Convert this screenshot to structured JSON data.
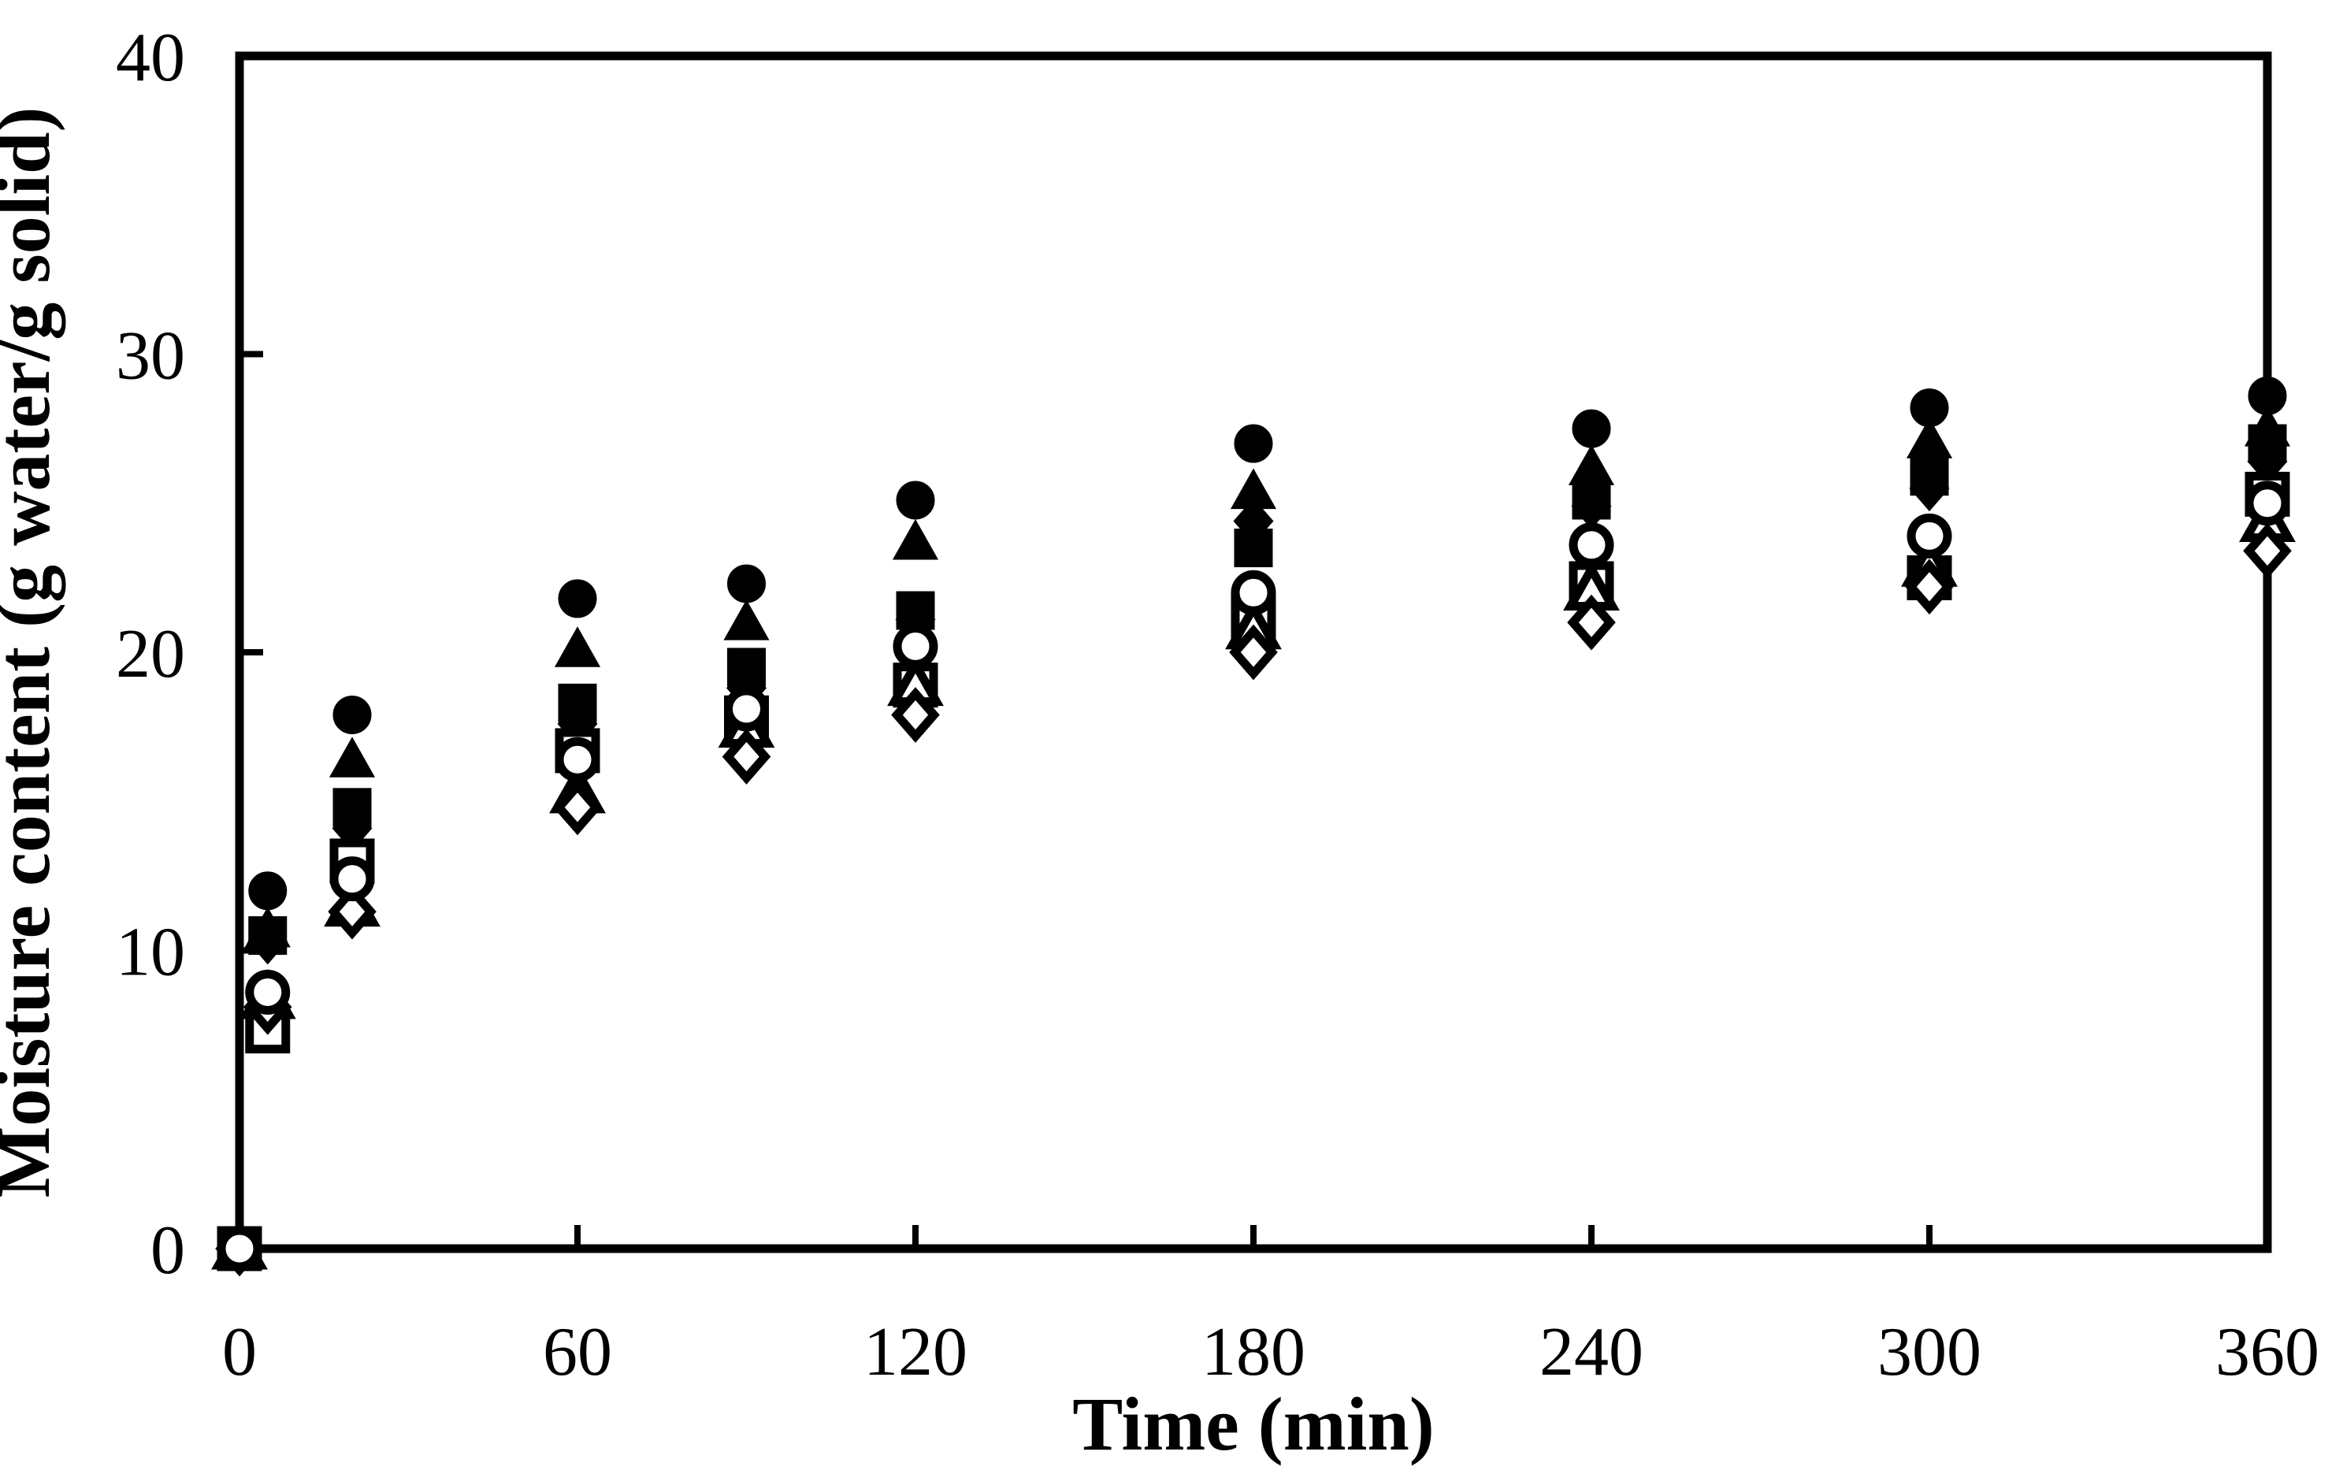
{
  "figure": {
    "background_color": "#ffffff",
    "axis_color": "#000000",
    "marker_color": "#000000"
  },
  "chart_data": {
    "type": "scatter",
    "title": "",
    "xlabel": "Time (min)",
    "ylabel": "Moisture content (g water/g solid)",
    "xlim": [
      0,
      360
    ],
    "ylim": [
      0,
      40
    ],
    "xticks": [
      0,
      60,
      120,
      180,
      240,
      300,
      360
    ],
    "yticks": [
      0,
      10,
      20,
      30,
      40
    ],
    "grid": false,
    "legend_position": "none",
    "x": [
      0,
      5,
      20,
      60,
      90,
      120,
      180,
      240,
      300,
      360
    ],
    "series": [
      {
        "name": "filled-circle",
        "marker": "circle",
        "fill": "filled",
        "color": "#000000",
        "values": [
          0,
          12.0,
          17.9,
          21.8,
          22.3,
          25.1,
          27.0,
          27.5,
          28.2,
          28.6
        ]
      },
      {
        "name": "filled-triangle",
        "marker": "triangle",
        "fill": "filled",
        "color": "#000000",
        "values": [
          0,
          10.7,
          16.4,
          20.1,
          21.0,
          23.7,
          25.4,
          26.2,
          27.1,
          27.5
        ]
      },
      {
        "name": "filled-square",
        "marker": "square",
        "fill": "filled",
        "color": "#000000",
        "values": [
          0,
          10.5,
          14.8,
          18.3,
          19.5,
          21.4,
          23.5,
          25.1,
          25.9,
          27.0
        ]
      },
      {
        "name": "filled-diamond",
        "marker": "diamond",
        "fill": "filled",
        "color": "#000000",
        "values": [
          0,
          10.3,
          14.1,
          17.6,
          18.8,
          21.1,
          24.4,
          24.9,
          25.5,
          26.4
        ]
      },
      {
        "name": "open-square",
        "marker": "square",
        "fill": "open",
        "color": "#000000",
        "values": [
          0,
          7.3,
          13.0,
          16.7,
          17.8,
          18.9,
          21.2,
          22.3,
          22.5,
          25.3
        ]
      },
      {
        "name": "open-triangle",
        "marker": "triangle",
        "fill": "open",
        "color": "#000000",
        "values": [
          0,
          8.4,
          11.5,
          15.3,
          17.5,
          18.9,
          20.8,
          22.1,
          22.9,
          24.4
        ]
      },
      {
        "name": "open-diamond",
        "marker": "diamond",
        "fill": "open",
        "color": "#000000",
        "values": [
          0,
          8.1,
          11.3,
          14.8,
          16.5,
          17.9,
          20.0,
          21.0,
          22.2,
          23.4
        ]
      },
      {
        "name": "open-circle",
        "marker": "circle",
        "fill": "open",
        "color": "#000000",
        "values": [
          0,
          8.6,
          12.4,
          16.4,
          18.1,
          20.2,
          22.0,
          23.6,
          23.9,
          25.0
        ]
      }
    ]
  }
}
